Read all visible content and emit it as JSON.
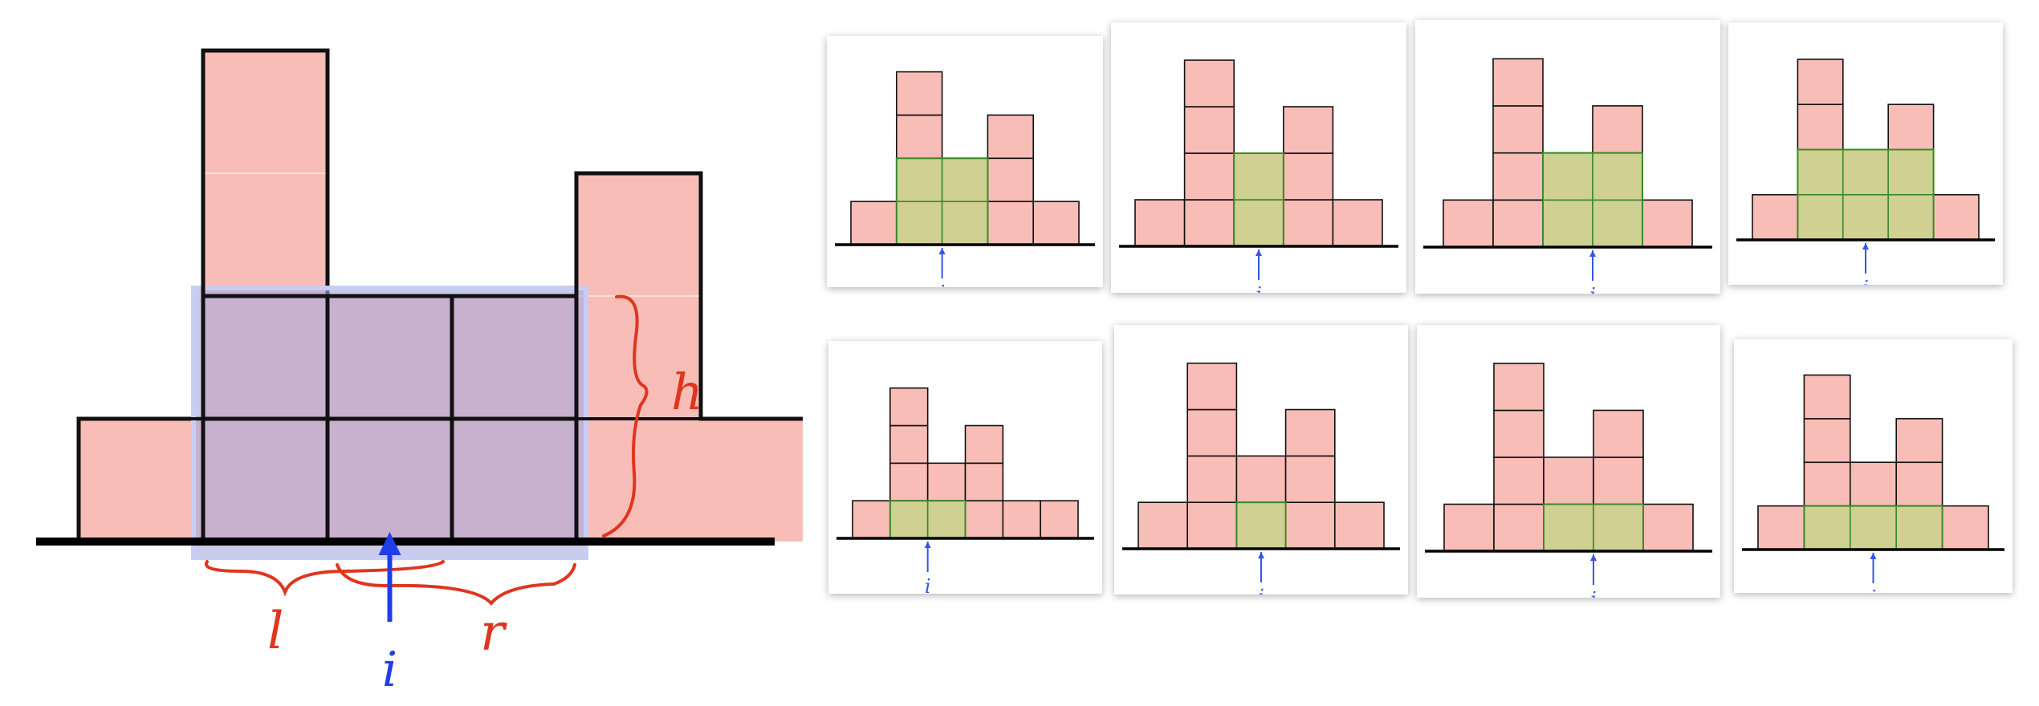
{
  "main_diagram": {
    "heights": [
      1,
      4,
      2,
      2,
      3,
      1
    ],
    "window": {
      "start": 1,
      "end": 3,
      "h": 2
    },
    "labels": {
      "height": "h",
      "left": "l",
      "right": "r",
      "index": "i"
    },
    "colors": {
      "bar": "#f7bdb6",
      "selection_fill": "#a9a9dd",
      "selection_opacity": 0.62,
      "selection_border": "#c7cdf3",
      "annotation": "#e0351f",
      "index": "#1f3ee8",
      "outline": "#111111"
    }
  },
  "thumbnails": {
    "colors": {
      "bar": "#f7bdb6",
      "window_fill": "#cfd092",
      "window_border": "#3a8a2a",
      "index": "#3355e8"
    },
    "index_label": "i",
    "items": [
      {
        "heights": [
          1,
          4,
          2,
          3,
          1
        ],
        "window": {
          "start": 1,
          "end": 2,
          "h": 2
        }
      },
      {
        "heights": [
          1,
          4,
          2,
          3,
          1
        ],
        "window": {
          "start": 2,
          "end": 2,
          "h": 2
        }
      },
      {
        "heights": [
          1,
          4,
          2,
          3,
          1
        ],
        "window": {
          "start": 2,
          "end": 3,
          "h": 2
        }
      },
      {
        "heights": [
          1,
          4,
          2,
          3,
          1
        ],
        "window": {
          "start": 1,
          "end": 3,
          "h": 2
        }
      },
      {
        "heights": [
          1,
          4,
          2,
          3,
          1,
          1
        ],
        "window": {
          "start": 1,
          "end": 2,
          "h": 1
        }
      },
      {
        "heights": [
          1,
          4,
          2,
          3,
          1
        ],
        "window": {
          "start": 2,
          "end": 2,
          "h": 1
        }
      },
      {
        "heights": [
          1,
          4,
          2,
          3,
          1
        ],
        "window": {
          "start": 2,
          "end": 3,
          "h": 1
        }
      },
      {
        "heights": [
          1,
          4,
          2,
          3,
          1
        ],
        "window": {
          "start": 1,
          "end": 3,
          "h": 1
        }
      }
    ]
  }
}
